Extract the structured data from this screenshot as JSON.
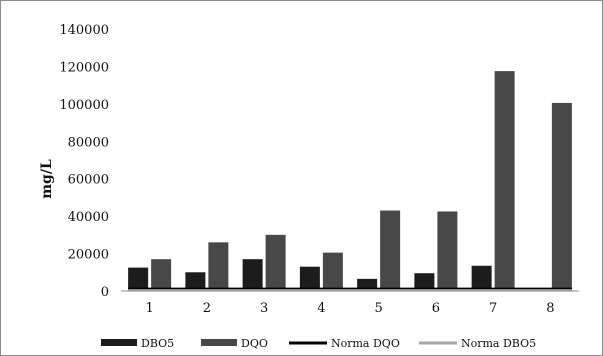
{
  "chart_data": {
    "type": "bar",
    "categories": [
      "1",
      "2",
      "3",
      "4",
      "5",
      "6",
      "7",
      "8"
    ],
    "series": [
      {
        "name": "DBO5",
        "values": [
          12500,
          10000,
          17000,
          13000,
          6500,
          9500,
          13500,
          0
        ],
        "color": "#1c1c1c"
      },
      {
        "name": "DQO",
        "values": [
          17000,
          26000,
          30000,
          20500,
          43000,
          42500,
          117500,
          100500
        ],
        "color": "#484848"
      }
    ],
    "reference_lines": [
      {
        "name": "Norma DQO",
        "value": 1000,
        "color": "#000000"
      },
      {
        "name": "Norma DBO5",
        "value": 500,
        "color": "#a6a6a6"
      }
    ],
    "yticks": [
      "0",
      "20000",
      "40000",
      "60000",
      "80000",
      "100000",
      "120000",
      "140000"
    ],
    "ylim": [
      0,
      140000
    ],
    "ylabel": "mg/L",
    "xlabel": "",
    "title": "",
    "legend_position": "bottom",
    "grid": false
  }
}
